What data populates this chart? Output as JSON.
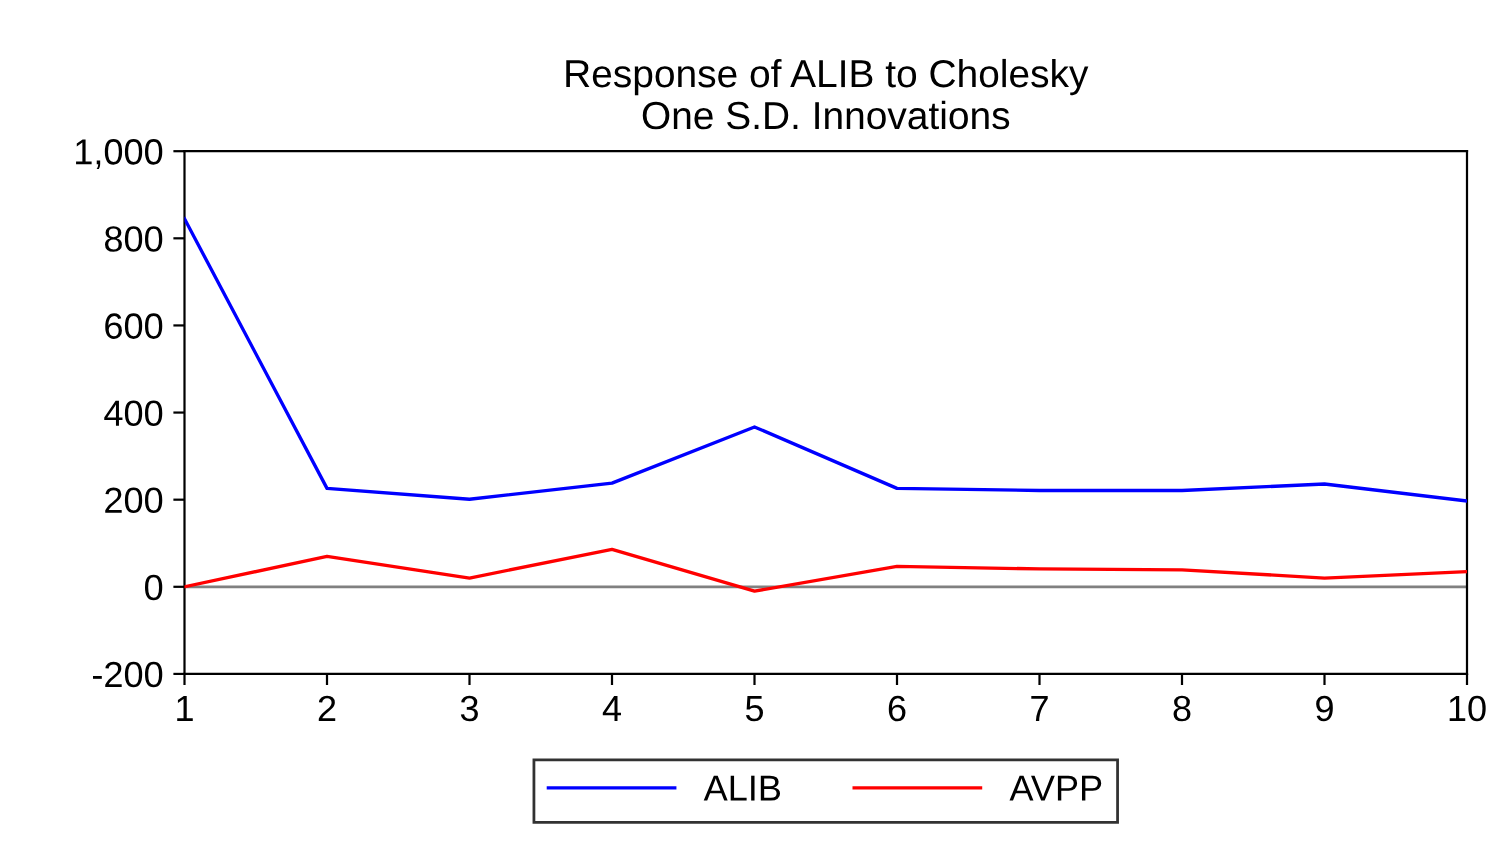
{
  "chart_data": {
    "type": "line",
    "title": "Response of ALIB to Cholesky\nOne S.D. Innovations",
    "x": [
      1,
      2,
      3,
      4,
      5,
      6,
      7,
      8,
      9,
      10
    ],
    "series": [
      {
        "name": "ALIB",
        "color": "#0000ff",
        "values": [
          845,
          226,
          201,
          238,
          367,
          226,
          221,
          221,
          236,
          197
        ]
      },
      {
        "name": "AVPP",
        "color": "#ff0000",
        "values": [
          0,
          70,
          20,
          86,
          -10,
          47,
          41,
          39,
          20,
          35
        ]
      }
    ],
    "xlim": [
      1,
      10
    ],
    "xticks": [
      1,
      2,
      3,
      4,
      5,
      6,
      7,
      8,
      9,
      10
    ],
    "ylim": [
      -200,
      1000
    ],
    "yticks": [
      {
        "value": -200,
        "label": "-200"
      },
      0,
      200,
      400,
      600,
      800,
      {
        "value": 1000,
        "label": "1,000"
      }
    ],
    "ref_lines": [
      {
        "axis": "y",
        "value": 0,
        "color": "#808080"
      }
    ],
    "grid": false,
    "legend": "bottom",
    "marker": "none",
    "line_style": "solid"
  }
}
